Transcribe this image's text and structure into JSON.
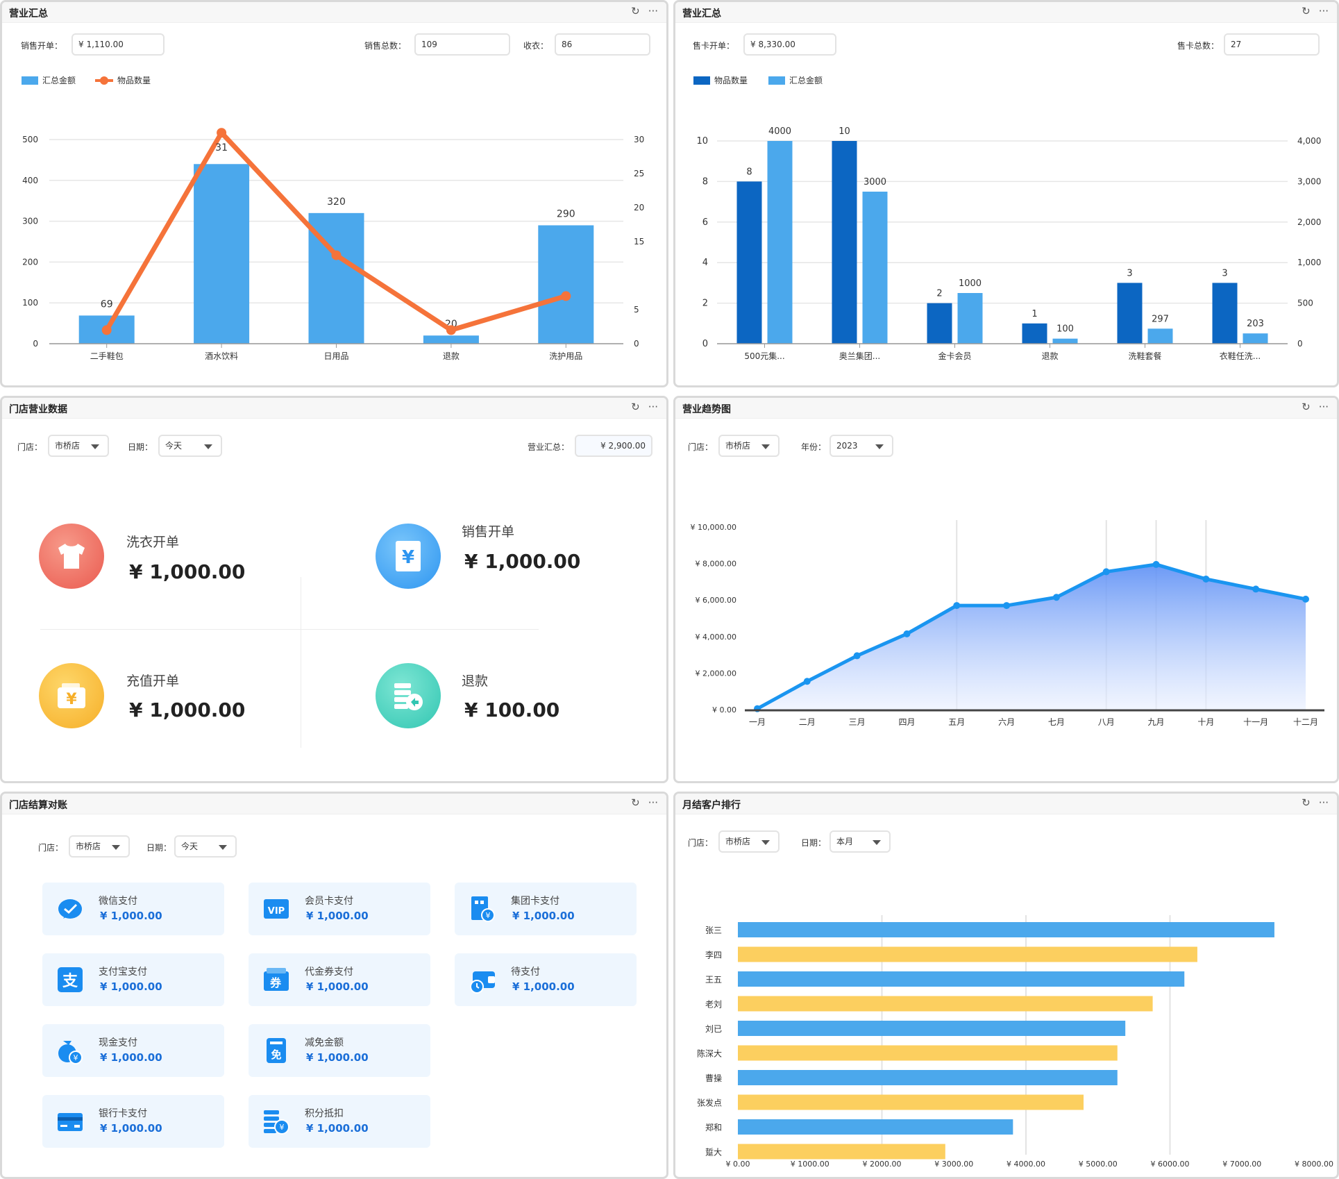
{
  "colors": {
    "blue": "#4ba8ec",
    "dark_blue": "#0c66c2",
    "orange": "#f5733a",
    "yellow": "#fccf5f",
    "line_blue": "#1a95f0"
  },
  "p1": {
    "title": "营业汇总",
    "sales_label": "销售开单：",
    "sales_value": "¥ 1,110.00",
    "count_label": "销售总数：",
    "count_value": "109",
    "cashier_label": "收衣：",
    "cashier_value": "86",
    "legend_amount": "汇总金额",
    "legend_qty": "物品数量"
  },
  "p2": {
    "title": "营业汇总",
    "card_label": "售卡开单：",
    "card_value": "¥ 8,330.00",
    "card_count_label": "售卡总数：",
    "card_count_value": "27",
    "legend_qty": "物品数量",
    "legend_amount": "汇总金额"
  },
  "p3": {
    "title": "门店营业数据",
    "store_label": "门店：",
    "store_value": "市桥店",
    "date_label": "日期：",
    "date_value": "今天",
    "total_label": "营业汇总：",
    "total_value": "¥ 2,900.00",
    "stats": [
      {
        "label": "洗衣开单",
        "value": "¥ 1,000.00",
        "icon": "shirt-icon"
      },
      {
        "label": "销售开单",
        "value": "¥ 1,000.00",
        "icon": "receipt-icon"
      },
      {
        "label": "充值开单",
        "value": "¥ 1,000.00",
        "icon": "wallet-icon"
      },
      {
        "label": "退款",
        "value": "¥ 100.00",
        "icon": "refund-icon"
      }
    ]
  },
  "p4": {
    "title": "营业趋势图",
    "store_label": "门店：",
    "store_value": "市桥店",
    "year_label": "年份：",
    "year_value": "2023"
  },
  "p5": {
    "title": "门店结算对账",
    "store_label": "门店：",
    "store_value": "市桥店",
    "date_label": "日期：",
    "date_value": "今天",
    "payments": [
      {
        "label": "微信支付",
        "value": "¥ 1,000.00",
        "icon": "wechat-icon"
      },
      {
        "label": "会员卡支付",
        "value": "¥ 1,000.00",
        "icon": "vip-icon"
      },
      {
        "label": "集团卡支付",
        "value": "¥ 1,000.00",
        "icon": "group-card-icon"
      },
      {
        "label": "支付宝支付",
        "value": "¥ 1,000.00",
        "icon": "alipay-icon"
      },
      {
        "label": "代金券支付",
        "value": "¥ 1,000.00",
        "icon": "voucher-icon"
      },
      {
        "label": "待支付",
        "value": "¥ 1,000.00",
        "icon": "pending-icon"
      },
      {
        "label": "现金支付",
        "value": "¥ 1,000.00",
        "icon": "cash-icon"
      },
      {
        "label": "减免金额",
        "value": "¥ 1,000.00",
        "icon": "discount-icon"
      },
      {
        "label": "银行卡支付",
        "value": "¥ 1,000.00",
        "icon": "bank-card-icon"
      },
      {
        "label": "积分抵扣",
        "value": "¥ 1,000.00",
        "icon": "points-icon"
      }
    ]
  },
  "p6": {
    "title": "月结客户排行",
    "store_label": "门店：",
    "store_value": "市桥店",
    "date_label": "日期：",
    "date_value": "本月"
  },
  "chart_data": [
    {
      "type": "bar",
      "categories": [
        "二手鞋包",
        "酒水饮料",
        "日用品",
        "退款",
        "洗护用品"
      ],
      "series": [
        {
          "name": "汇总金额",
          "type": "bar",
          "axis": "left",
          "values": [
            69,
            440,
            320,
            20,
            290
          ],
          "labels": [
            "69",
            "",
            "320",
            "20",
            "290"
          ]
        },
        {
          "name": "物品数量",
          "type": "line",
          "axis": "right",
          "values": [
            2,
            31,
            13,
            2,
            7
          ],
          "labels": [
            "",
            "31",
            "",
            "",
            ""
          ]
        }
      ],
      "y_left_ticks": [
        0,
        100,
        200,
        300,
        400,
        500
      ],
      "ylim_left": [
        0,
        500
      ],
      "y_right_ticks": [
        0,
        5,
        15,
        20,
        25,
        30
      ],
      "ylim_right": [
        0,
        30
      ]
    },
    {
      "type": "bar",
      "categories": [
        "500元集...",
        "奥兰集团...",
        "金卡会员",
        "退款",
        "洗鞋套餐",
        "衣鞋任洗..."
      ],
      "series": [
        {
          "name": "物品数量",
          "axis": "left",
          "values": [
            8,
            10,
            2,
            1,
            3,
            3
          ]
        },
        {
          "name": "汇总金额",
          "axis": "right",
          "values": [
            4000,
            3000,
            1000,
            100,
            297,
            203
          ]
        }
      ],
      "y_left_ticks": [
        "0",
        "2",
        "4",
        "6",
        "8",
        "10"
      ],
      "ylim_left": [
        0,
        10
      ],
      "y_right_ticks": [
        "0",
        "500",
        "1,000",
        "2,000",
        "3,000",
        "4,000"
      ],
      "ylim_right": [
        0,
        4000
      ]
    },
    {
      "type": "area",
      "categories": [
        "一月",
        "二月",
        "三月",
        "四月",
        "五月",
        "六月",
        "七月",
        "八月",
        "九月",
        "十月",
        "十一月",
        "十二月"
      ],
      "values": [
        50,
        1550,
        2950,
        4150,
        5700,
        5700,
        6150,
        7550,
        7950,
        7150,
        6600,
        6050
      ],
      "y_ticks": [
        "¥ 0.00",
        "¥ 2,000.00",
        "¥ 4,000.00",
        "¥ 6,000.00",
        "¥ 8,000.00",
        "¥ 10,000.00"
      ],
      "ylim": [
        0,
        10000
      ]
    },
    {
      "type": "bar",
      "orientation": "horizontal",
      "categories": [
        "张三",
        "李四",
        "王五",
        "老刘",
        "刘已",
        "陈深大",
        "曹操",
        "张发点",
        "郑和",
        "踅大"
      ],
      "values": [
        7450,
        6380,
        6200,
        5760,
        5380,
        5270,
        5270,
        4800,
        3820,
        2880
      ],
      "x_ticks": [
        "¥ 0.00",
        "¥ 1000.00",
        "¥ 2000.00",
        "¥ 3000.00",
        "¥ 4000.00",
        "¥ 5000.00",
        "¥ 6000.00",
        "¥ 7000.00",
        "¥ 8000.00"
      ],
      "xlim": [
        0,
        8000
      ]
    }
  ]
}
